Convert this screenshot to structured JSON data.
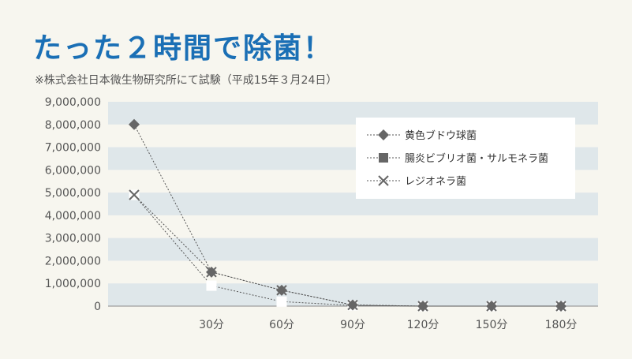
{
  "title": "たった２時間で除菌！",
  "subtitle": "※株式会社日本微生物研究所にて試験（平成15年３月24日）",
  "colors": {
    "title": "#1a6fb5",
    "band": "#dfe7ea",
    "background": "#f7f6ef",
    "series": "#666666"
  },
  "chart_data": {
    "type": "line",
    "x": [
      0,
      30,
      60,
      90,
      120,
      150,
      180
    ],
    "categories": [
      "",
      "30分",
      "60分",
      "90分",
      "120分",
      "150分",
      "180分"
    ],
    "y_ticks": [
      "0",
      "1,000,000",
      "2,000,000",
      "3,000,000",
      "4,000,000",
      "5,000,000",
      "6,000,000",
      "7,000,000",
      "8,000,000",
      "9,000,000"
    ],
    "ylim": [
      0,
      9000000
    ],
    "legend_position": "top-right",
    "series": [
      {
        "name": "黄色ブドウ球菌",
        "marker": "diamond",
        "values": [
          8000000,
          1500000,
          700000,
          50000,
          0,
          0,
          0
        ]
      },
      {
        "name": "腸炎ビブリオ菌・サルモネラ菌",
        "marker": "square",
        "values": [
          4900000,
          900000,
          200000,
          30000,
          0,
          0,
          0
        ]
      },
      {
        "name": "レジオネラ菌",
        "marker": "x",
        "values": [
          4900000,
          1500000,
          700000,
          50000,
          0,
          0,
          0
        ]
      }
    ]
  }
}
